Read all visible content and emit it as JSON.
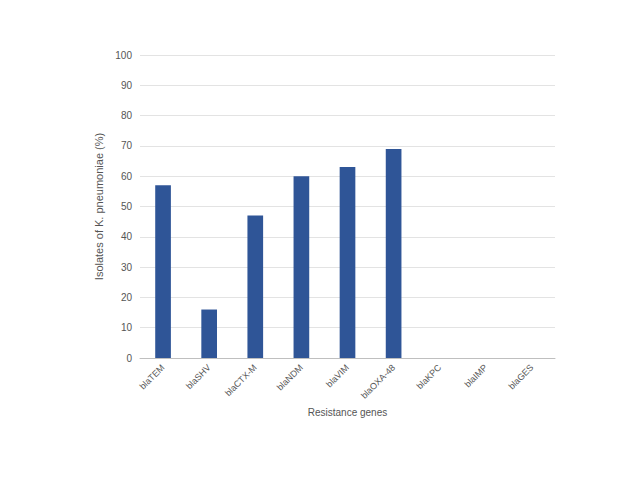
{
  "chart_data": {
    "type": "bar",
    "xlabel": "Resistance genes",
    "ylabel": "Isolates of K. pneumoniae (%)",
    "categories": [
      "blaTEM",
      "blaSHV",
      "blaCTX-M",
      "blaNDM",
      "blaVIM",
      "blaOXA-48",
      "blaKPC",
      "blaIMP",
      "blaGES"
    ],
    "values": [
      57,
      16,
      47,
      60,
      63,
      69,
      0,
      0,
      0
    ],
    "color": "#2f5597",
    "ylim": [
      0,
      100
    ],
    "yticks": [
      0,
      10,
      20,
      30,
      40,
      50,
      60,
      70,
      80,
      90,
      100
    ],
    "grid": true
  }
}
